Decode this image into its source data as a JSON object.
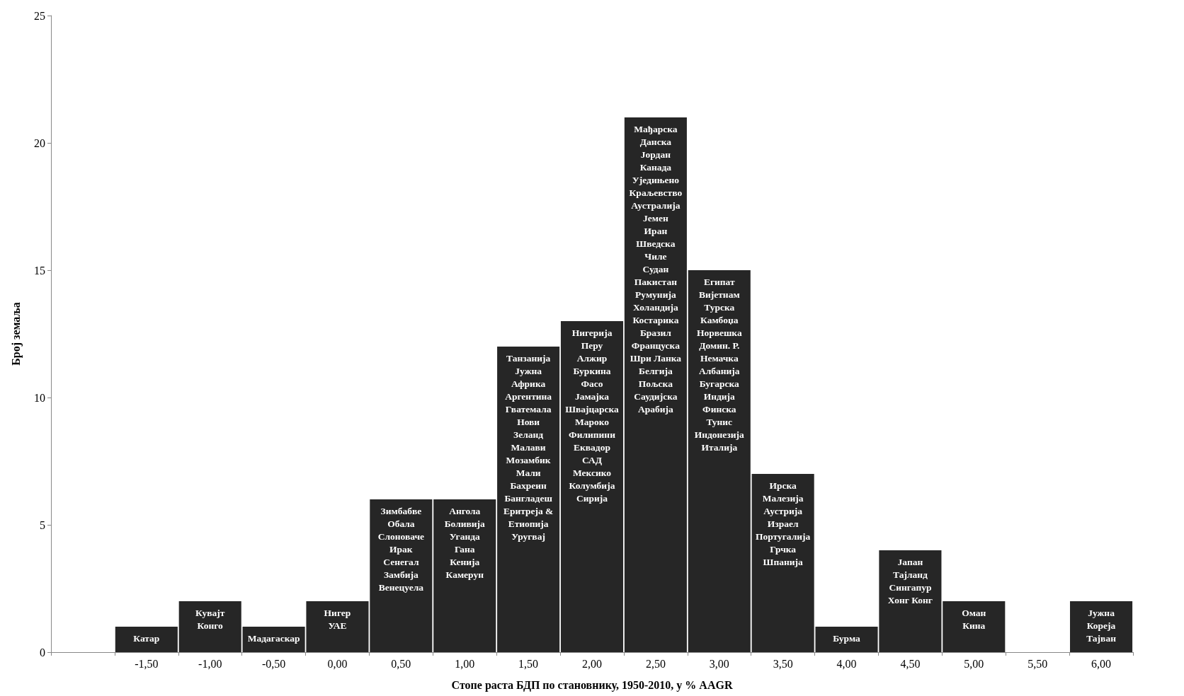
{
  "chart_data": {
    "type": "bar",
    "xlabel": "Стопе раста БДП по становнику, 1950-2010, у % AAGR",
    "ylabel": "Број земаља",
    "categories": [
      null,
      "-1,50",
      "-1,00",
      "-0,50",
      "0,00",
      "0,50",
      "1,00",
      "1,50",
      "2,00",
      "2,50",
      "3,00",
      "3,50",
      "4,00",
      "4,50",
      "5,00",
      "5,50",
      "6,00"
    ],
    "values": [
      0,
      1,
      2,
      1,
      2,
      6,
      6,
      12,
      13,
      21,
      15,
      7,
      1,
      4,
      2,
      0,
      2
    ],
    "value_labels": [
      null,
      "Катар",
      "Кувајт\nКонго",
      "Мадагаскар",
      "Нигер\nУАЕ",
      "Зимбабве\nОбала\nСлоноваче\nИрак\nСенегал\nЗамбија\nВенецуела",
      "Ангола\nБоливија\nУганда\nГана\nКенија\nКамерун",
      "Танзанија\nЈужна\nАфрика\nАргентина\nГватемала\nНови\nЗеланд\nМалави\nМозамбик\nМали\nБахреин\nБангладеш\nЕритреја &\nЕтиопија\nУругвај",
      "Нигерија\nПеру\nАлжир\nБуркина\nФасо\nЈамајка\nШвајцарска\nМароко\nФилипини\nЕквадор\nСАД\nМексико\nКолумбија\nСирија",
      "Мађарска\nДанска\nЈордан\nКанада\nУједињено\nКраљевство\nАустралија\nЈемен\nИран\nШведска\nЧиле\nСудан\nПакистан\nРумунија\nХоландија\nКостарика\nБразил\nФранцуска\nШри Ланка\nБелгија\nПољска\nСаудијска\nАрабија",
      "Египат\nВијетнам\nТурска\nКамбоџа\nНорвешка\nДомин. Р.\nНемачка\nАлбанија\nБугарска\nИндија\nФинска\nТунис\nИндонезија\nИталија",
      "Ирска\nМалезија\nАустрија\nИзраел\nПортугалија\nГрчка\nШпанија",
      "Бурма",
      "Јапан\nТајланд\nСингапур\nХонг Конг",
      "Оман\nКина",
      null,
      "Јужна\nКореја\nТајван"
    ],
    "color": "#262626",
    "ylim": [
      0,
      25
    ],
    "yticks": [
      0,
      5,
      10,
      15,
      20,
      25
    ],
    "grid": false
  }
}
